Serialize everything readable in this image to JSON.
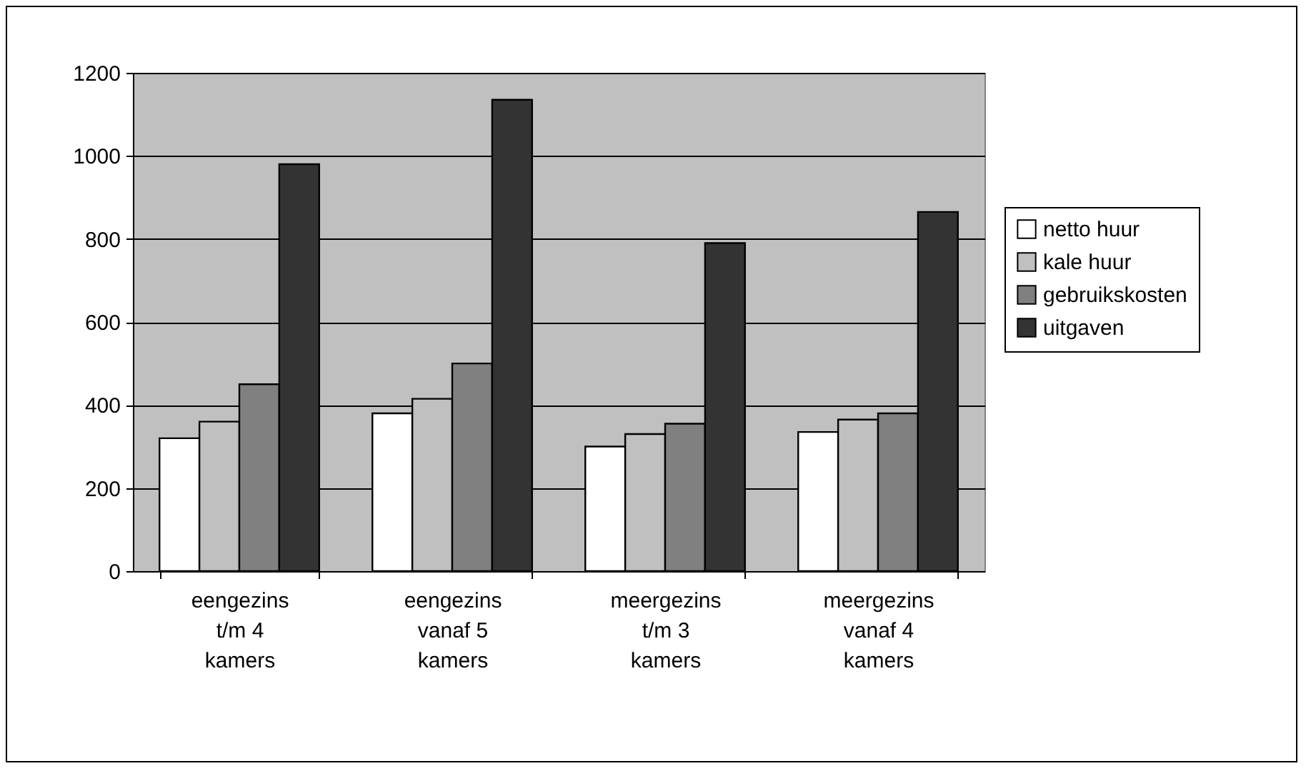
{
  "chart_data": {
    "type": "bar",
    "categories": [
      "eengezins t/m 4 kamers",
      "eengezins vanaf 5 kamers",
      "meergezins t/m 3 kamers",
      "meergezins vanaf 4 kamers"
    ],
    "series": [
      {
        "name": "netto huur",
        "color": "#ffffff",
        "values": [
          320,
          380,
          300,
          335
        ]
      },
      {
        "name": "kale huur",
        "color": "#c0c0c0",
        "values": [
          360,
          415,
          330,
          365
        ]
      },
      {
        "name": "gebruikskosten",
        "color": "#808080",
        "values": [
          450,
          500,
          355,
          380
        ]
      },
      {
        "name": "uitgaven",
        "color": "#333333",
        "values": [
          980,
          1135,
          790,
          865
        ]
      }
    ],
    "ylim": [
      0,
      1200
    ],
    "yticks": [
      0,
      200,
      400,
      600,
      800,
      1000,
      1200
    ],
    "grid": "y",
    "legend": "right"
  }
}
